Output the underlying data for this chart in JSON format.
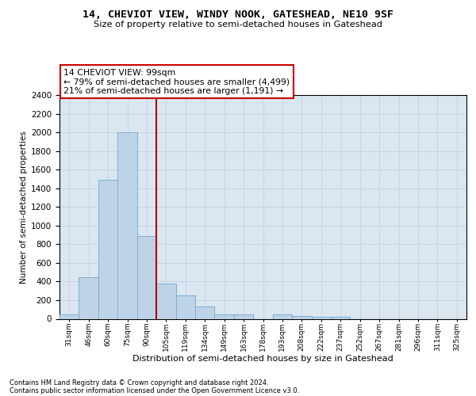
{
  "title": "14, CHEVIOT VIEW, WINDY NOOK, GATESHEAD, NE10 9SF",
  "subtitle": "Size of property relative to semi-detached houses in Gateshead",
  "xlabel": "Distribution of semi-detached houses by size in Gateshead",
  "ylabel": "Number of semi-detached properties",
  "categories": [
    "31sqm",
    "46sqm",
    "60sqm",
    "75sqm",
    "90sqm",
    "105sqm",
    "119sqm",
    "134sqm",
    "149sqm",
    "163sqm",
    "178sqm",
    "193sqm",
    "208sqm",
    "222sqm",
    "237sqm",
    "252sqm",
    "267sqm",
    "281sqm",
    "296sqm",
    "311sqm",
    "325sqm"
  ],
  "values": [
    45,
    445,
    1490,
    2000,
    885,
    375,
    250,
    130,
    45,
    45,
    0,
    45,
    30,
    20,
    20,
    0,
    0,
    0,
    0,
    0,
    0
  ],
  "bar_color": "#bfd3e8",
  "bar_edge_color": "#7aaed4",
  "vline_color": "#aa0000",
  "vline_x_index": 4.5,
  "annotation_title": "14 CHEVIOT VIEW: 99sqm",
  "annotation_line1": "← 79% of semi-detached houses are smaller (4,499)",
  "annotation_line2": "21% of semi-detached houses are larger (1,191) →",
  "annotation_box_edgecolor": "#cc0000",
  "ylim_max": 2400,
  "yticks": [
    0,
    200,
    400,
    600,
    800,
    1000,
    1200,
    1400,
    1600,
    1800,
    2000,
    2200,
    2400
  ],
  "grid_color": "#c5d5e5",
  "plot_bg_color": "#dae6f0",
  "footnote1": "Contains HM Land Registry data © Crown copyright and database right 2024.",
  "footnote2": "Contains public sector information licensed under the Open Government Licence v3.0."
}
